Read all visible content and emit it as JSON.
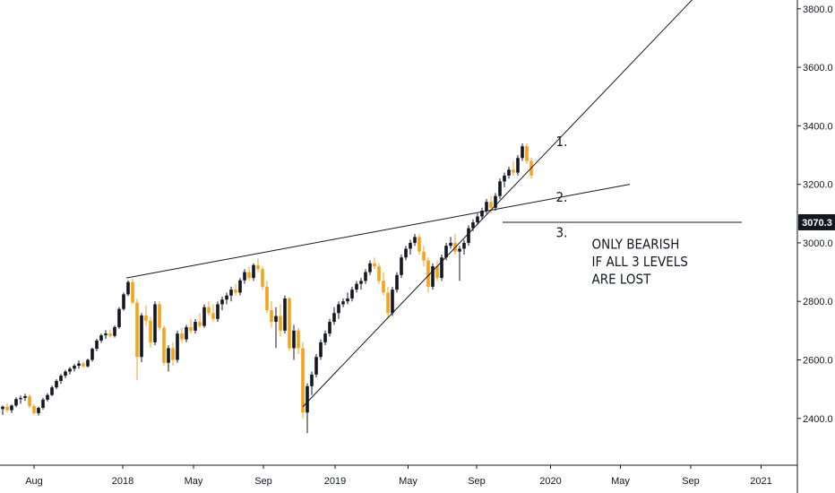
{
  "chart_data": {
    "type": "candlestick",
    "instrument_note": "",
    "x_axis_labels": [
      "Aug",
      "2018",
      "May",
      "Sep",
      "2019",
      "May",
      "Sep",
      "2020",
      "May",
      "Sep",
      "2021"
    ],
    "y_axis": {
      "ticks": [
        "2400.0",
        "2600.0",
        "2800.0",
        "3000.0",
        "3200.0",
        "3400.0",
        "3600.0",
        "3800.0"
      ],
      "tick_values": [
        2400,
        2600,
        2800,
        3000,
        3200,
        3400,
        3600,
        3800
      ],
      "range": [
        2240,
        3830
      ]
    },
    "last_price": {
      "label": "3070.3",
      "value": 3070.3
    },
    "colors": {
      "up": "#131722",
      "down": "#f7a21b",
      "line": "#131722",
      "axis": "#131722",
      "tag_bg": "#131722"
    },
    "candles": [
      [
        2432,
        2444,
        2412,
        2440
      ],
      [
        2440,
        2452,
        2420,
        2428
      ],
      [
        2428,
        2448,
        2418,
        2444
      ],
      [
        2444,
        2472,
        2438,
        2466
      ],
      [
        2466,
        2478,
        2450,
        2470
      ],
      [
        2470,
        2484,
        2460,
        2476
      ],
      [
        2476,
        2482,
        2436,
        2442
      ],
      [
        2442,
        2450,
        2412,
        2418
      ],
      [
        2418,
        2440,
        2410,
        2436
      ],
      [
        2436,
        2470,
        2430,
        2464
      ],
      [
        2464,
        2486,
        2458,
        2480
      ],
      [
        2480,
        2512,
        2476,
        2506
      ],
      [
        2506,
        2534,
        2500,
        2528
      ],
      [
        2528,
        2552,
        2518,
        2546
      ],
      [
        2546,
        2566,
        2538,
        2560
      ],
      [
        2560,
        2576,
        2550,
        2570
      ],
      [
        2570,
        2586,
        2560,
        2580
      ],
      [
        2580,
        2598,
        2570,
        2588
      ],
      [
        2588,
        2594,
        2572,
        2578
      ],
      [
        2578,
        2604,
        2574,
        2600
      ],
      [
        2600,
        2642,
        2594,
        2638
      ],
      [
        2638,
        2672,
        2630,
        2666
      ],
      [
        2666,
        2690,
        2658,
        2684
      ],
      [
        2684,
        2702,
        2672,
        2690
      ],
      [
        2690,
        2704,
        2676,
        2682
      ],
      [
        2682,
        2718,
        2676,
        2712
      ],
      [
        2712,
        2780,
        2706,
        2774
      ],
      [
        2774,
        2830,
        2768,
        2824
      ],
      [
        2824,
        2872,
        2818,
        2866
      ],
      [
        2866,
        2878,
        2790,
        2796
      ],
      [
        2796,
        2808,
        2530,
        2610
      ],
      [
        2610,
        2760,
        2592,
        2752
      ],
      [
        2752,
        2786,
        2716,
        2734
      ],
      [
        2734,
        2748,
        2640,
        2660
      ],
      [
        2660,
        2800,
        2650,
        2790
      ],
      [
        2790,
        2800,
        2700,
        2710
      ],
      [
        2710,
        2718,
        2580,
        2590
      ],
      [
        2590,
        2650,
        2560,
        2640
      ],
      [
        2640,
        2660,
        2580,
        2600
      ],
      [
        2600,
        2700,
        2590,
        2690
      ],
      [
        2690,
        2710,
        2660,
        2670
      ],
      [
        2670,
        2720,
        2660,
        2712
      ],
      [
        2712,
        2740,
        2690,
        2700
      ],
      [
        2700,
        2740,
        2690,
        2730
      ],
      [
        2730,
        2760,
        2708,
        2716
      ],
      [
        2716,
        2790,
        2710,
        2780
      ],
      [
        2780,
        2800,
        2750,
        2760
      ],
      [
        2760,
        2790,
        2730,
        2740
      ],
      [
        2740,
        2800,
        2730,
        2790
      ],
      [
        2790,
        2816,
        2770,
        2806
      ],
      [
        2806,
        2830,
        2790,
        2820
      ],
      [
        2820,
        2850,
        2800,
        2840
      ],
      [
        2840,
        2860,
        2820,
        2830
      ],
      [
        2830,
        2880,
        2820,
        2872
      ],
      [
        2872,
        2910,
        2860,
        2900
      ],
      [
        2900,
        2920,
        2870,
        2880
      ],
      [
        2880,
        2930,
        2870,
        2924
      ],
      [
        2924,
        2946,
        2900,
        2910
      ],
      [
        2910,
        2920,
        2840,
        2850
      ],
      [
        2850,
        2870,
        2760,
        2770
      ],
      [
        2770,
        2800,
        2710,
        2730
      ],
      [
        2730,
        2780,
        2640,
        2750
      ],
      [
        2750,
        2790,
        2680,
        2700
      ],
      [
        2700,
        2820,
        2690,
        2810
      ],
      [
        2810,
        2815,
        2630,
        2640
      ],
      [
        2640,
        2720,
        2600,
        2700
      ],
      [
        2700,
        2710,
        2620,
        2640
      ],
      [
        2640,
        2660,
        2400,
        2420
      ],
      [
        2420,
        2520,
        2350,
        2510
      ],
      [
        2510,
        2560,
        2480,
        2550
      ],
      [
        2550,
        2620,
        2540,
        2610
      ],
      [
        2610,
        2670,
        2600,
        2660
      ],
      [
        2660,
        2700,
        2650,
        2690
      ],
      [
        2690,
        2740,
        2680,
        2730
      ],
      [
        2730,
        2780,
        2720,
        2760
      ],
      [
        2760,
        2800,
        2740,
        2790
      ],
      [
        2790,
        2810,
        2780,
        2800
      ],
      [
        2800,
        2830,
        2790,
        2810
      ],
      [
        2810,
        2850,
        2800,
        2840
      ],
      [
        2840,
        2870,
        2830,
        2860
      ],
      [
        2860,
        2880,
        2840,
        2870
      ],
      [
        2870,
        2910,
        2860,
        2900
      ],
      [
        2900,
        2940,
        2890,
        2930
      ],
      [
        2930,
        2950,
        2910,
        2920
      ],
      [
        2920,
        2930,
        2860,
        2870
      ],
      [
        2870,
        2900,
        2820,
        2830
      ],
      [
        2830,
        2850,
        2740,
        2760
      ],
      [
        2760,
        2850,
        2750,
        2840
      ],
      [
        2840,
        2900,
        2830,
        2890
      ],
      [
        2890,
        2960,
        2880,
        2950
      ],
      [
        2950,
        2990,
        2940,
        2980
      ],
      [
        2980,
        3010,
        2960,
        3000
      ],
      [
        3000,
        3030,
        2990,
        3020
      ],
      [
        3020,
        3030,
        2960,
        2970
      ],
      [
        2970,
        2990,
        2920,
        2940
      ],
      [
        2940,
        2950,
        2830,
        2850
      ],
      [
        2850,
        2930,
        2840,
        2920
      ],
      [
        2920,
        2940,
        2870,
        2880
      ],
      [
        2880,
        2960,
        2870,
        2950
      ],
      [
        2950,
        3000,
        2940,
        2990
      ],
      [
        2990,
        3020,
        2980,
        3000
      ],
      [
        3000,
        3030,
        2960,
        2970
      ],
      [
        2970,
        2990,
        2870,
        2980
      ],
      [
        2980,
        3010,
        2960,
        3000
      ],
      [
        3000,
        3060,
        2990,
        3050
      ],
      [
        3050,
        3080,
        3040,
        3070
      ],
      [
        3070,
        3100,
        3060,
        3090
      ],
      [
        3090,
        3120,
        3080,
        3110
      ],
      [
        3110,
        3150,
        3100,
        3140
      ],
      [
        3140,
        3160,
        3100,
        3120
      ],
      [
        3120,
        3170,
        3110,
        3160
      ],
      [
        3160,
        3220,
        3150,
        3210
      ],
      [
        3210,
        3240,
        3190,
        3230
      ],
      [
        3230,
        3260,
        3220,
        3250
      ],
      [
        3250,
        3280,
        3230,
        3240
      ],
      [
        3240,
        3300,
        3230,
        3290
      ],
      [
        3290,
        3340,
        3280,
        3330
      ],
      [
        3330,
        3340,
        3270,
        3280
      ],
      [
        3280,
        3290,
        3220,
        3230
      ]
    ],
    "trendlines": [
      {
        "from": {
          "bar": 27.6,
          "price": 2880
        },
        "to": {
          "bar": 140,
          "price": 3200
        }
      },
      {
        "from": {
          "bar": 67.0,
          "price": 2440
        },
        "to": {
          "bar": 157,
          "price": 3880
        }
      },
      {
        "from": {
          "bar": 111.6,
          "price": 3070.3
        },
        "to": {
          "bar": 165,
          "price": 3070.3
        }
      }
    ],
    "annotations": [
      {
        "text": "1.",
        "bar": 123.5,
        "price": 3330
      },
      {
        "text": "2.",
        "bar": 123.5,
        "price": 3140
      },
      {
        "text": "3.",
        "bar": 123.5,
        "price": 3020
      },
      {
        "text": "ONLY BEARISH",
        "bar": 131.5,
        "price": 2980
      },
      {
        "text": "IF ALL 3 LEVELS",
        "bar": 131.5,
        "price": 2920
      },
      {
        "text": "ARE LOST",
        "bar": 131.5,
        "price": 2860
      }
    ]
  }
}
